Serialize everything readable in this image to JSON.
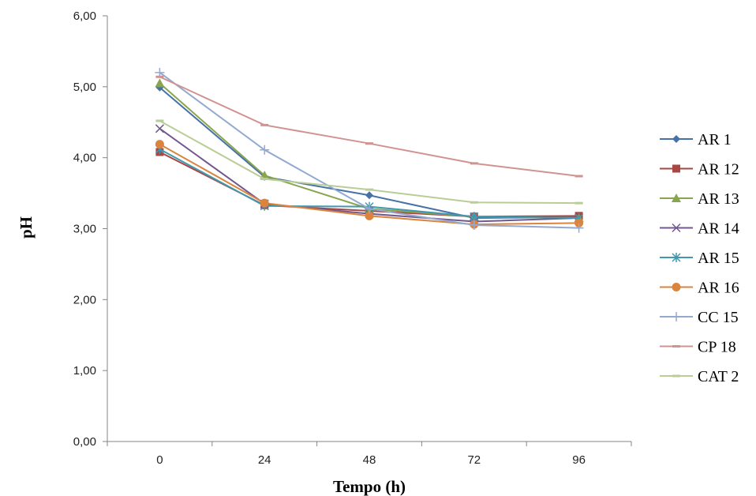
{
  "chart_data": {
    "type": "line",
    "title": "",
    "xlabel": "Tempo (h)",
    "ylabel": "pH",
    "x": [
      "0",
      "24",
      "48",
      "72",
      "96"
    ],
    "ylim": [
      0,
      6
    ],
    "yticks": [
      "0,00",
      "1,00",
      "2,00",
      "3,00",
      "4,00",
      "5,00",
      "6,00"
    ],
    "grid": false,
    "legend_position": "right",
    "series": [
      {
        "name": "AR 1",
        "color": "#4572A7",
        "marker": "diamond",
        "values": [
          4.99,
          3.73,
          3.47,
          3.15,
          3.16
        ]
      },
      {
        "name": "AR 12",
        "color": "#AA4643",
        "marker": "square",
        "values": [
          4.08,
          3.33,
          3.25,
          3.17,
          3.18
        ]
      },
      {
        "name": "AR 13",
        "color": "#89A54E",
        "marker": "triangle",
        "values": [
          5.05,
          3.75,
          3.28,
          3.17,
          3.15
        ]
      },
      {
        "name": "AR 14",
        "color": "#71588F",
        "marker": "x",
        "values": [
          4.41,
          3.35,
          3.21,
          3.1,
          3.15
        ]
      },
      {
        "name": "AR 15",
        "color": "#4198AF",
        "marker": "star",
        "values": [
          4.12,
          3.32,
          3.31,
          3.17,
          3.15
        ]
      },
      {
        "name": "AR 16",
        "color": "#DB843D",
        "marker": "circle",
        "values": [
          4.19,
          3.36,
          3.18,
          3.06,
          3.08
        ]
      },
      {
        "name": "CC 15",
        "color": "#93A9CF",
        "marker": "plus",
        "values": [
          5.2,
          4.11,
          3.28,
          3.05,
          3.01
        ]
      },
      {
        "name": "CP 18",
        "color": "#D19392",
        "marker": "dash",
        "values": [
          5.14,
          4.46,
          4.2,
          3.92,
          3.74
        ]
      },
      {
        "name": "CAT 2",
        "color": "#B9CD96",
        "marker": "dash",
        "values": [
          4.52,
          3.7,
          3.55,
          3.37,
          3.36
        ]
      }
    ]
  }
}
